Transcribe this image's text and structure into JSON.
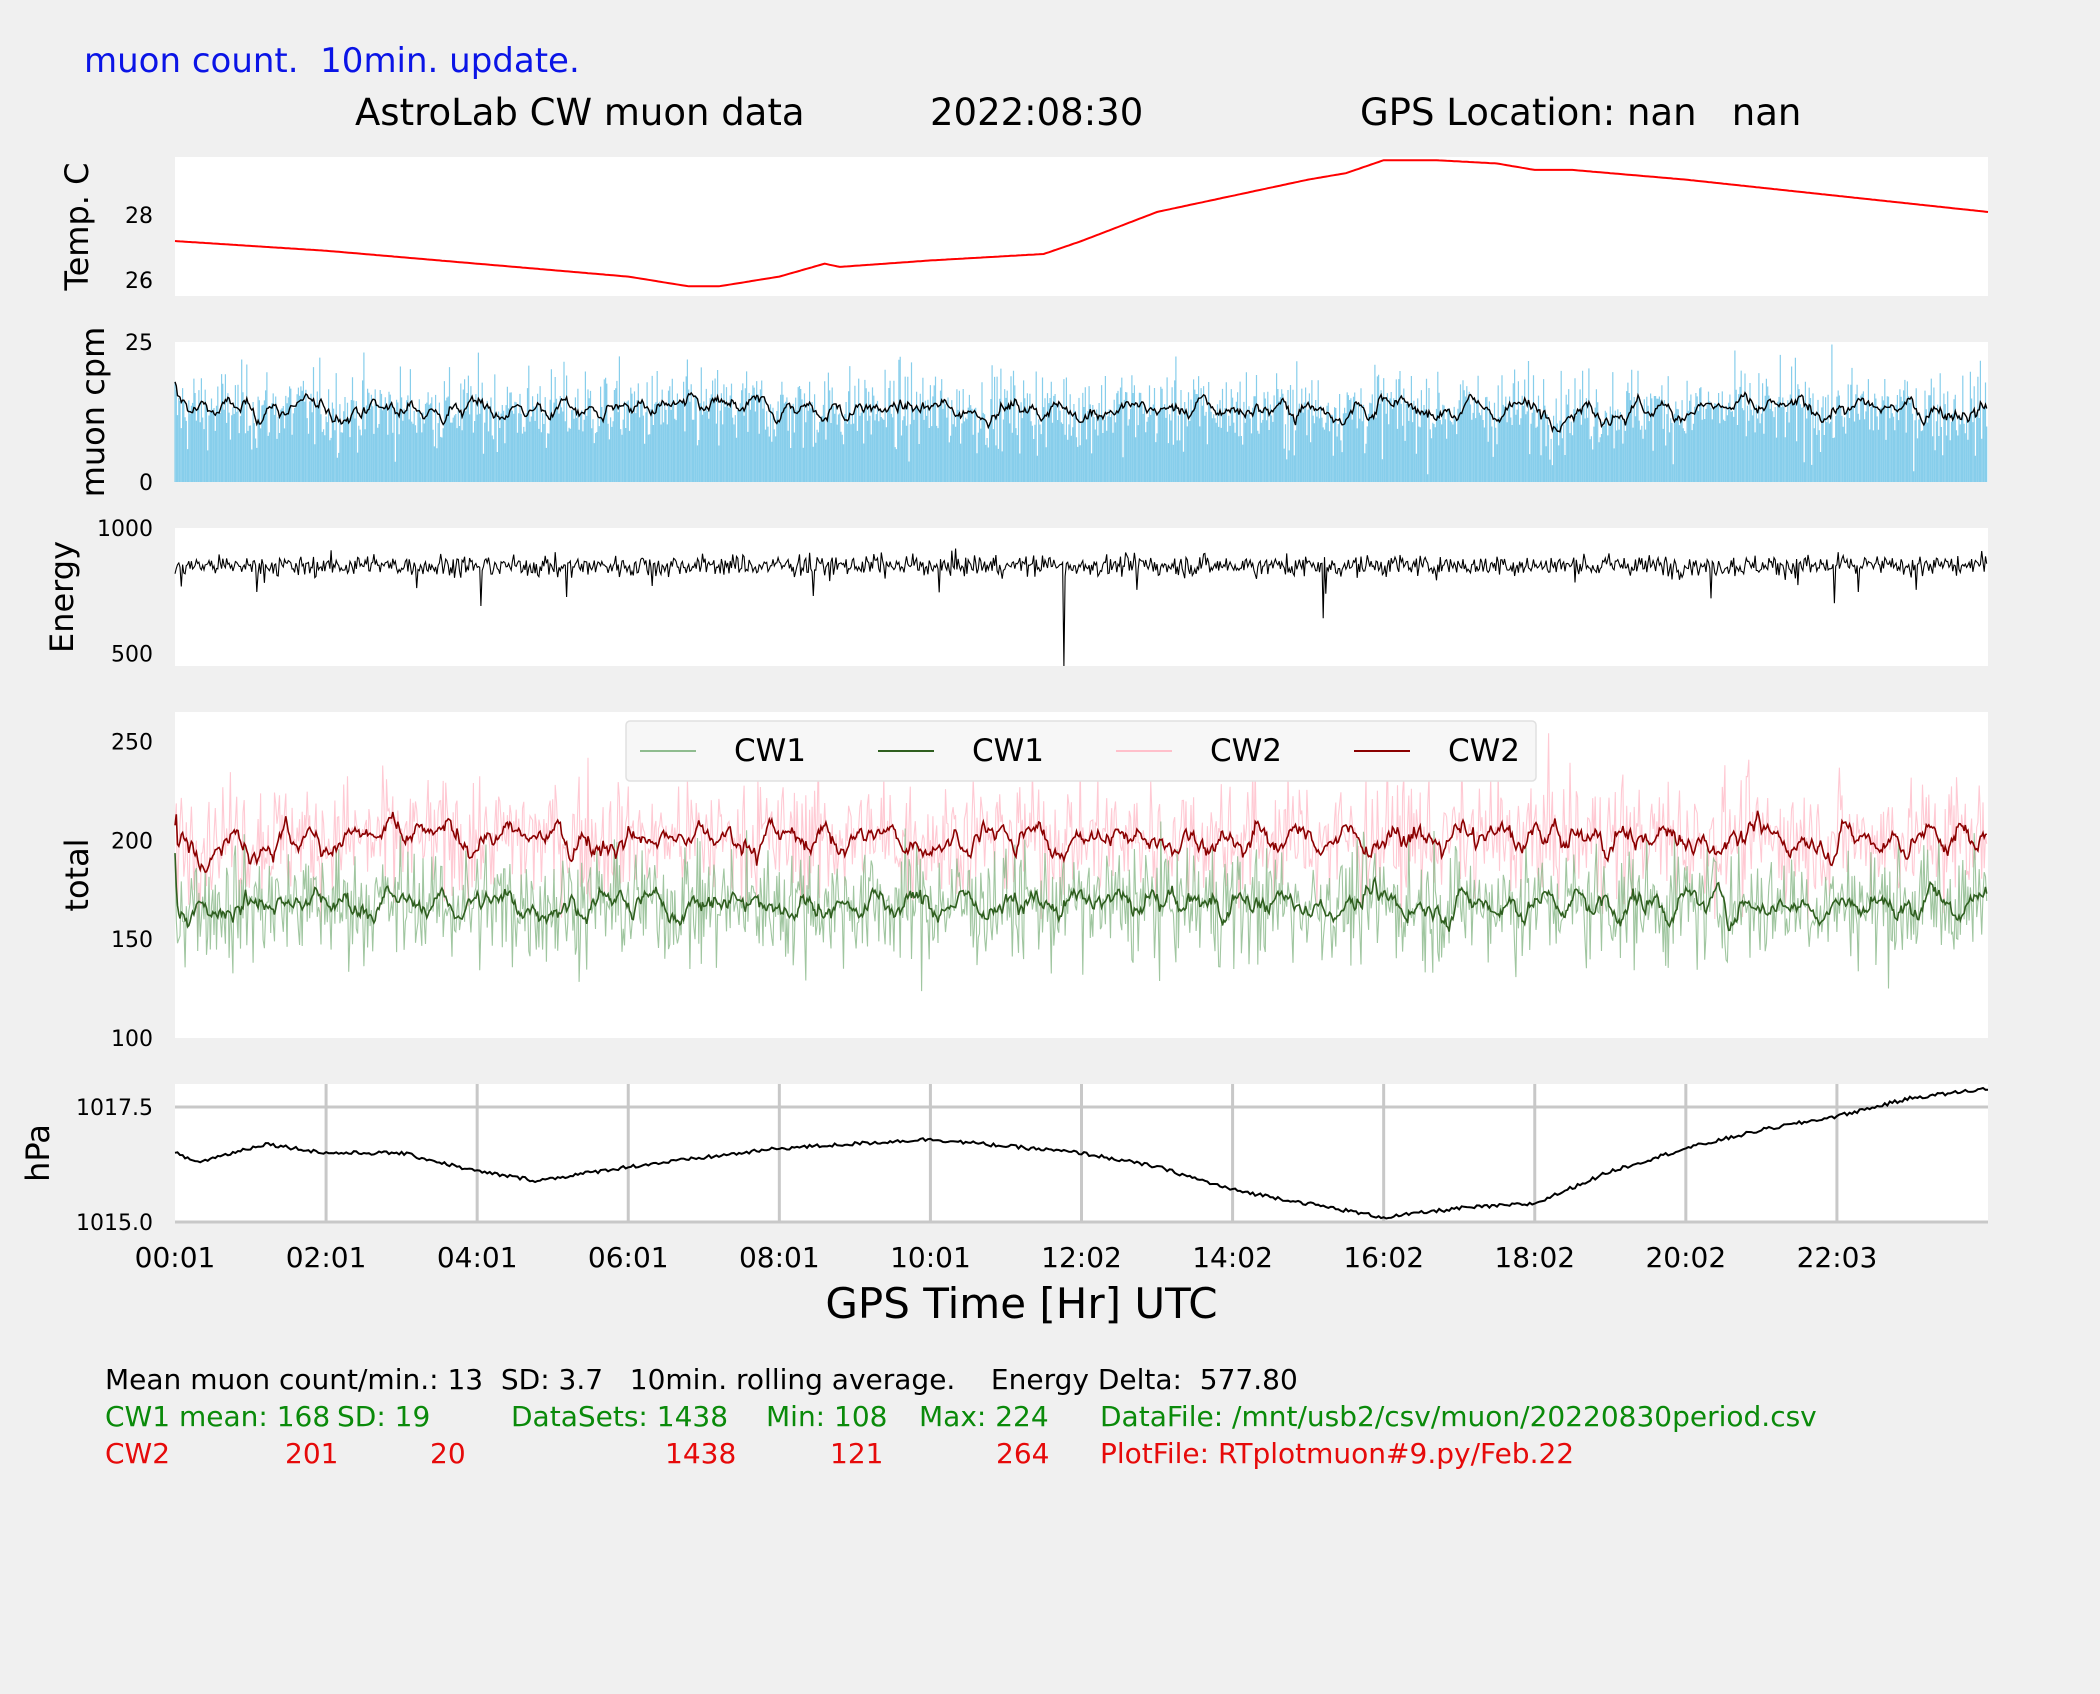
{
  "header": {
    "note": "muon count.  10min. update.",
    "title": "AstroLab CW muon data",
    "date": "2022:08:30",
    "gps_location": "GPS Location: nan   nan"
  },
  "colors": {
    "background": "#f0f0f0",
    "plot_bg": "#ffffff",
    "temp_line": "#ff0000",
    "muon_bars": "#87ceeb",
    "muon_avg": "#000000",
    "energy_line": "#000000",
    "cw1_raw": "#8fbc8f",
    "cw1_avg": "#2f5f1f",
    "cw2_raw": "#ffc0cb",
    "cw2_avg": "#8b0000",
    "pressure_line": "#000000",
    "grid": "#c8c8c8"
  },
  "chart_data": [
    {
      "type": "line",
      "ylabel": "Temp. C",
      "yticks": [
        "26",
        "28"
      ],
      "ylim": [
        25.5,
        29.8
      ],
      "x_hours": [
        0,
        2,
        4,
        6,
        6.8,
        7.2,
        8,
        8.6,
        8.8,
        10,
        11.5,
        12,
        13,
        14,
        15,
        15.5,
        16,
        16.7,
        17.5,
        18,
        18.5,
        19,
        20,
        22,
        24
      ],
      "values": [
        27.2,
        26.9,
        26.5,
        26.1,
        25.8,
        25.8,
        26.1,
        26.5,
        26.4,
        26.6,
        26.8,
        27.2,
        28.1,
        28.6,
        29.1,
        29.3,
        29.7,
        29.7,
        29.6,
        29.4,
        29.4,
        29.3,
        29.1,
        28.6,
        28.1
      ],
      "grid": false
    },
    {
      "type": "bar",
      "ylabel": "muon cpm",
      "yticks": [
        "0",
        "25"
      ],
      "ylim": [
        0,
        25
      ],
      "series": [
        {
          "role": "per-minute count",
          "mean": 13,
          "sd": 3.7
        },
        {
          "role": "10min. rolling average",
          "mean": 13
        }
      ],
      "grid": false
    },
    {
      "type": "line",
      "ylabel": "Energy",
      "yticks": [
        "500",
        "1000"
      ],
      "ylim": [
        450,
        1000
      ],
      "series": [
        {
          "role": "energy",
          "mean": 850,
          "min": 450,
          "max": 960
        }
      ],
      "grid": false
    },
    {
      "type": "line",
      "ylabel": "total",
      "yticks": [
        "100",
        "150",
        "200",
        "250"
      ],
      "ylim": [
        100,
        265
      ],
      "legend": [
        "CW1",
        "CW1",
        "CW2",
        "CW2"
      ],
      "legend_position": "top-center",
      "series": [
        {
          "name": "CW1",
          "role": "raw",
          "mean": 168,
          "sd": 19,
          "min": 108,
          "max": 224
        },
        {
          "name": "CW1",
          "role": "average",
          "mean": 168
        },
        {
          "name": "CW2",
          "role": "raw",
          "mean": 201,
          "sd": 20,
          "min": 121,
          "max": 264
        },
        {
          "name": "CW2",
          "role": "average",
          "mean": 201
        }
      ],
      "grid": false
    },
    {
      "type": "line",
      "ylabel": "hPa",
      "yticks": [
        "1015.0",
        "1017.5"
      ],
      "ylim": [
        1015.0,
        1018.0
      ],
      "x_hours": [
        0,
        0.3,
        1.2,
        2,
        3,
        4,
        4.8,
        6,
        8,
        10,
        12,
        13,
        14,
        15,
        16,
        17,
        18,
        19,
        20,
        21,
        22,
        23,
        24
      ],
      "values": [
        1016.5,
        1016.3,
        1016.7,
        1016.5,
        1016.5,
        1016.1,
        1015.9,
        1016.2,
        1016.6,
        1016.8,
        1016.5,
        1016.2,
        1015.7,
        1015.4,
        1015.1,
        1015.3,
        1015.4,
        1016.1,
        1016.6,
        1017.0,
        1017.3,
        1017.7,
        1017.9
      ],
      "grid": true
    }
  ],
  "x_axis": {
    "label": "GPS Time  [Hr] UTC",
    "ticks": [
      "00:01",
      "02:01",
      "04:01",
      "06:01",
      "08:01",
      "10:01",
      "12:02",
      "14:02",
      "16:02",
      "18:02",
      "20:02",
      "22:03"
    ]
  },
  "stats": {
    "line1": "Mean muon count/min.: 13  SD: 3.7   10min. rolling average.    Energy Delta:  577.80",
    "cw1": {
      "label": "CW1 mean: 168",
      "sd": "SD: 19",
      "datasets": "DataSets: 1438",
      "min": "Min: 108",
      "max": "Max: 224",
      "file": "DataFile: /mnt/usb2/csv/muon/20220830period.csv"
    },
    "cw2": {
      "label": "CW2",
      "mean": "201",
      "sd": "20",
      "datasets": "1438",
      "min": "121",
      "max": "264",
      "file": "PlotFile: RTplotmuon#9.py/Feb.22"
    }
  }
}
